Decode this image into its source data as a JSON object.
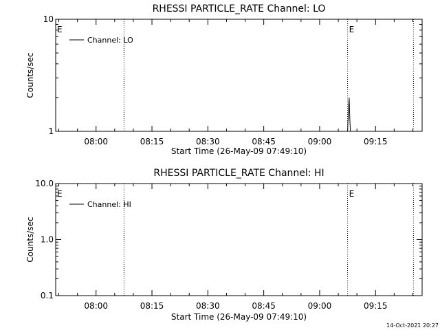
{
  "footer": {
    "timestamp": "14-Oct-2021 20:27"
  },
  "chart_data": [
    {
      "type": "line",
      "title": "RHESSI PARTICLE_RATE Channel: LO",
      "xlabel": "Start Time (26-May-09 07:49:10)",
      "ylabel": "Counts/sec",
      "yscale": "log",
      "ylim": [
        1,
        10
      ],
      "ytick_values": [
        1,
        10
      ],
      "ytick_labels": [
        "1",
        "10"
      ],
      "xlim": [
        "07:49:10",
        "09:27:30"
      ],
      "xtick_values": [
        "08:00",
        "08:15",
        "08:30",
        "08:45",
        "09:00",
        "09:15"
      ],
      "xtick_labels": [
        "08:00",
        "08:15",
        "08:30",
        "08:45",
        "09:00",
        "09:15"
      ],
      "event_lines": [
        "08:07:30",
        "09:07:30",
        "09:25:10"
      ],
      "event_markers": [
        {
          "time": "07:49:10",
          "label": "E"
        },
        {
          "time": "09:07:30",
          "label": "E"
        }
      ],
      "legend": {
        "position": "top-left",
        "entries": [
          "Channel: LO"
        ]
      },
      "series": [
        {
          "name": "Channel: LO",
          "x": [
            "09:07:30",
            "09:07:45",
            "09:07:55",
            "09:08:05",
            "09:08:15"
          ],
          "values": [
            1.0,
            1.6,
            2.0,
            1.3,
            1.0
          ]
        }
      ]
    },
    {
      "type": "line",
      "title": "RHESSI PARTICLE_RATE Channel: HI",
      "xlabel": "Start Time (26-May-09 07:49:10)",
      "ylabel": "Counts/sec",
      "yscale": "log",
      "ylim": [
        0.1,
        10
      ],
      "ytick_values": [
        0.1,
        1,
        10
      ],
      "ytick_labels": [
        "0.1",
        "1.0",
        "10.0"
      ],
      "xlim": [
        "07:49:10",
        "09:27:30"
      ],
      "xtick_values": [
        "08:00",
        "08:15",
        "08:30",
        "08:45",
        "09:00",
        "09:15"
      ],
      "xtick_labels": [
        "08:00",
        "08:15",
        "08:30",
        "08:45",
        "09:00",
        "09:15"
      ],
      "event_lines": [
        "08:07:30",
        "09:07:30",
        "09:25:10"
      ],
      "event_markers": [
        {
          "time": "07:49:10",
          "label": "E"
        },
        {
          "time": "09:07:30",
          "label": "E"
        }
      ],
      "legend": {
        "position": "top-left",
        "entries": [
          "Channel: HI"
        ]
      },
      "series": [
        {
          "name": "Channel: HI",
          "x": [],
          "values": []
        }
      ]
    }
  ]
}
